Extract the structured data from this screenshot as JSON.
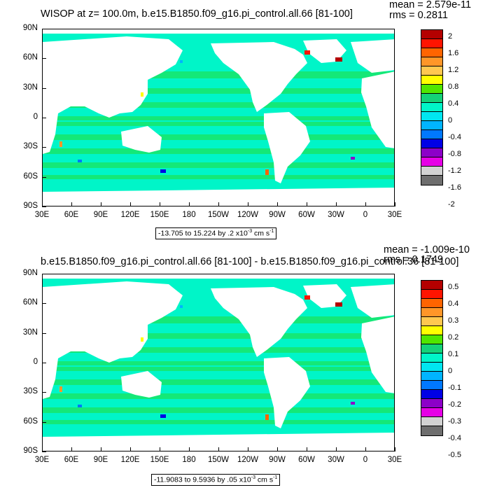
{
  "panels": [
    {
      "title": "WISOP at z= 100.0m, b.e15.B1850.f09_g16.pi_control.all.66 [81-100]",
      "stat_mean": "mean = 2.579e-11",
      "stat_rms": "rms = 0.2811",
      "range_text": "-13.705 to 15.224 by .2 x10",
      "range_exp": "-3",
      "range_unit": " cm s",
      "range_unit_exp": "-1",
      "colorbar_labels": [
        "2",
        "1.6",
        "1.2",
        "0.8",
        "0.4",
        "0",
        "-0.4",
        "-0.8",
        "-1.2",
        "-1.6",
        "-2"
      ]
    },
    {
      "title": "b.e15.B1850.f09_g16.pi_control.all.66 [81-100] - b.e15.B1850.f09_g16.pi_control.36 [81-100]",
      "stat_mean": "mean = -1.009e-10",
      "stat_rms": "rms = 0.1749",
      "range_text": "-11.9083 to 9.5936 by .05 x10",
      "range_exp": "-3",
      "range_unit": " cm s",
      "range_unit_exp": "-1",
      "colorbar_labels": [
        "0.5",
        "0.4",
        "0.3",
        "0.2",
        "0.1",
        "0",
        "-0.1",
        "-0.2",
        "-0.3",
        "-0.4",
        "-0.5"
      ]
    }
  ],
  "lat_labels": [
    "90N",
    "60N",
    "30N",
    "0",
    "30S",
    "60S",
    "90S"
  ],
  "lon_labels": [
    "30E",
    "60E",
    "90E",
    "120E",
    "150E",
    "180",
    "150W",
    "120W",
    "90W",
    "60W",
    "30W",
    "0",
    "30E"
  ],
  "colors": {
    "ocean_fill": "#00f5c8",
    "zonal_band": "#14e878",
    "land": "#ffffff",
    "colorbar": [
      "#b40000",
      "#ff1400",
      "#ff6400",
      "#ff9628",
      "#ffc850",
      "#ffff00",
      "#50e600",
      "#14d278",
      "#00f5c8",
      "#00e6f0",
      "#00b4ff",
      "#0078ff",
      "#0000e6",
      "#8c00c8",
      "#e600e6",
      "#d2d2d2",
      "#6e6e6e"
    ]
  }
}
